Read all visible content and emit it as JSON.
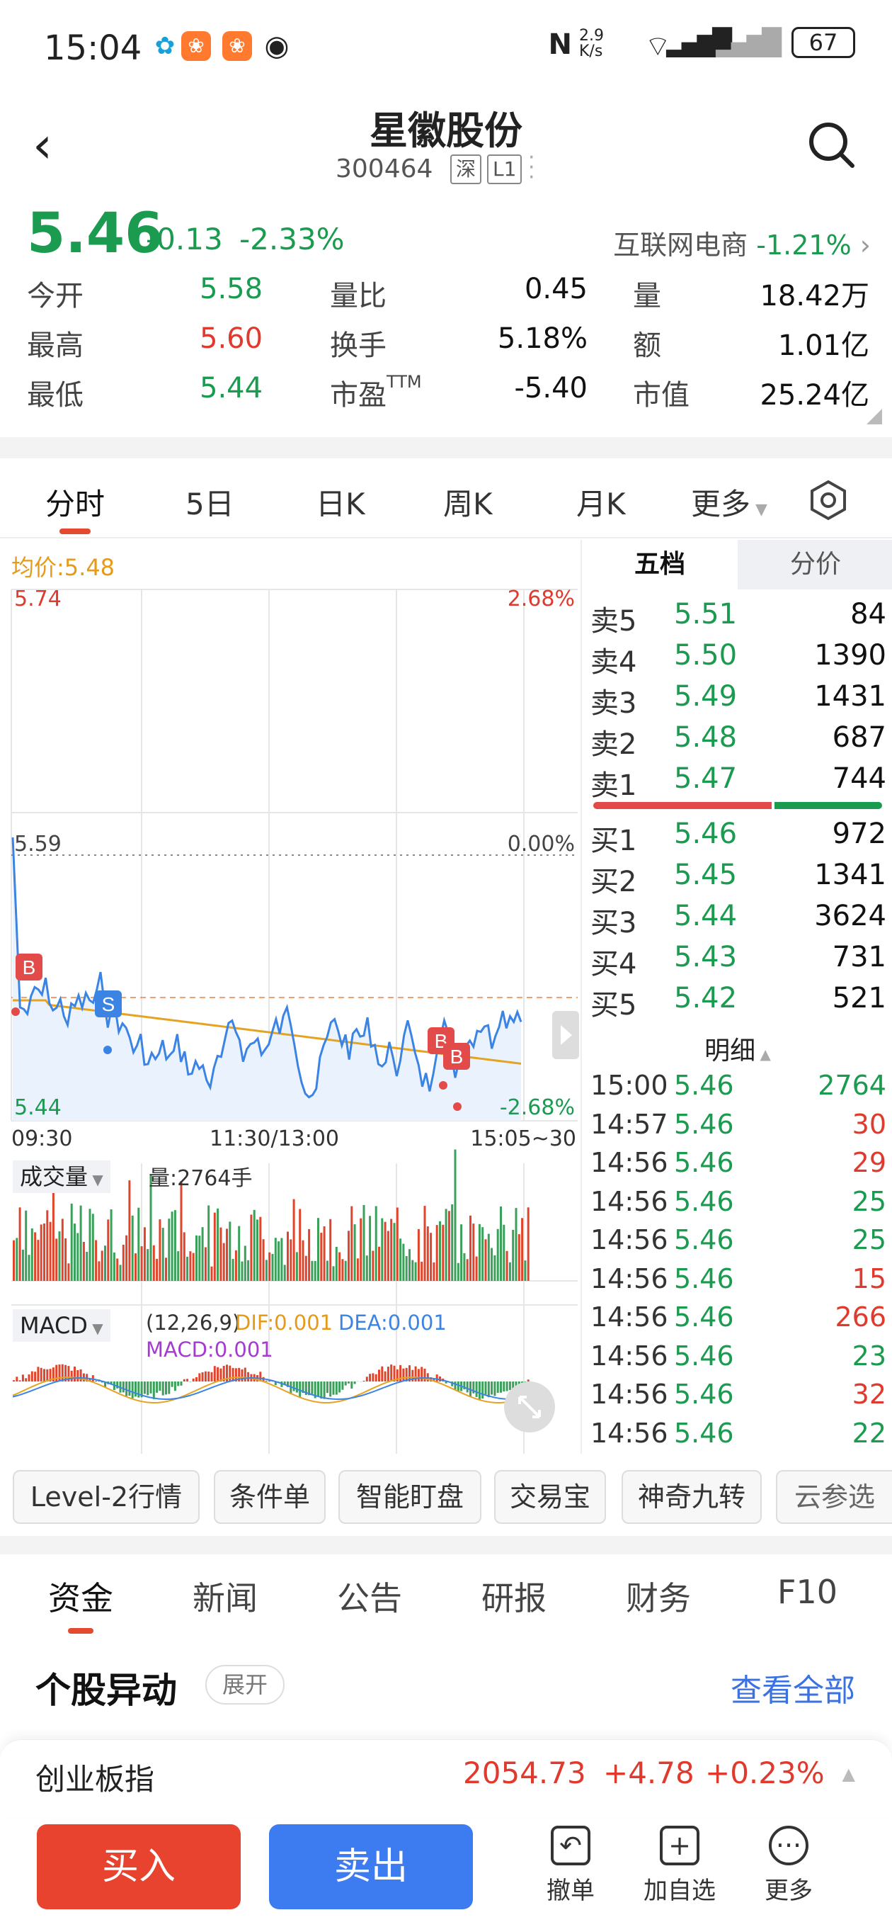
{
  "status": {
    "time": "15:04",
    "speed": "2.9\nK/s",
    "battery": "67"
  },
  "header": {
    "title": "星徽股份",
    "code": "300464",
    "tag1": "深",
    "tag2": "L1"
  },
  "quote": {
    "price": "5.46",
    "change": "-0.13",
    "pct": "-2.33%",
    "sector_name": "互联网电商",
    "sector_pct": "-1.21%",
    "rows": [
      [
        {
          "l": "今开",
          "v": "5.58",
          "c": "green"
        },
        {
          "l": "量比",
          "v": "0.45",
          "c": "black"
        },
        {
          "l": "量",
          "v": "18.42万",
          "c": "black"
        }
      ],
      [
        {
          "l": "最高",
          "v": "5.60",
          "c": "red"
        },
        {
          "l": "换手",
          "v": "5.18%",
          "c": "black"
        },
        {
          "l": "额",
          "v": "1.01亿",
          "c": "black"
        }
      ],
      [
        {
          "l": "最低",
          "v": "5.44",
          "c": "green"
        },
        {
          "l": "市盈",
          "sup": "TTM",
          "v": "-5.40",
          "c": "black"
        },
        {
          "l": "市值",
          "v": "25.24亿",
          "c": "black"
        }
      ]
    ]
  },
  "tabs": [
    "分时",
    "5日",
    "日K",
    "周K",
    "月K",
    "更多"
  ],
  "chart": {
    "avg_label": "均价:5.48",
    "top_price": "5.74",
    "top_pct": "2.68%",
    "mid_price": "5.59",
    "mid_pct": "0.00%",
    "bot_price": "5.44",
    "bot_pct": "-2.68%",
    "t_start": "09:30",
    "t_mid": "11:30/13:00",
    "t_end": "15:05~30",
    "vol_label": "成交量",
    "vol_value": "量:2764手",
    "macd_label": "MACD",
    "macd_params": "(12,26,9)",
    "dif": "DIF:0.001",
    "dea": "DEA:0.001",
    "macd": "MACD:0.001",
    "marker_b": "B",
    "marker_s": "S"
  },
  "side": {
    "tab1": "五档",
    "tab2": "分价",
    "asks": [
      [
        "卖5",
        "5.51",
        "84"
      ],
      [
        "卖4",
        "5.50",
        "1390"
      ],
      [
        "卖3",
        "5.49",
        "1431"
      ],
      [
        "卖2",
        "5.48",
        "687"
      ],
      [
        "卖1",
        "5.47",
        "744"
      ]
    ],
    "bids": [
      [
        "买1",
        "5.46",
        "972"
      ],
      [
        "买2",
        "5.45",
        "1341"
      ],
      [
        "买3",
        "5.44",
        "3624"
      ],
      [
        "买4",
        "5.43",
        "731"
      ],
      [
        "买5",
        "5.42",
        "521"
      ]
    ],
    "detail_label": "明细",
    "ticks": [
      [
        "15:00",
        "5.46",
        "2764",
        "green"
      ],
      [
        "14:57",
        "5.46",
        "30",
        "red"
      ],
      [
        "14:56",
        "5.46",
        "29",
        "red"
      ],
      [
        "14:56",
        "5.46",
        "25",
        "green"
      ],
      [
        "14:56",
        "5.46",
        "25",
        "green"
      ],
      [
        "14:56",
        "5.46",
        "15",
        "red"
      ],
      [
        "14:56",
        "5.46",
        "266",
        "red"
      ],
      [
        "14:56",
        "5.46",
        "23",
        "green"
      ],
      [
        "14:56",
        "5.46",
        "32",
        "red"
      ],
      [
        "14:56",
        "5.46",
        "22",
        "green"
      ]
    ]
  },
  "tools": [
    "Level-2行情",
    "条件单",
    "智能盯盘",
    "交易宝",
    "神奇九转",
    "云参选"
  ],
  "tabs2": [
    "资金",
    "新闻",
    "公告",
    "研报",
    "财务",
    "F10"
  ],
  "alert": {
    "title": "个股异动",
    "expand": "展开",
    "viewall": "查看全部"
  },
  "index": {
    "name": "创业板指",
    "value": "2054.73",
    "change": "+4.78",
    "pct": "+0.23%"
  },
  "bottom": {
    "buy": "买入",
    "sell": "卖出",
    "cancel": "撤单",
    "add": "加自选",
    "more": "更多"
  }
}
